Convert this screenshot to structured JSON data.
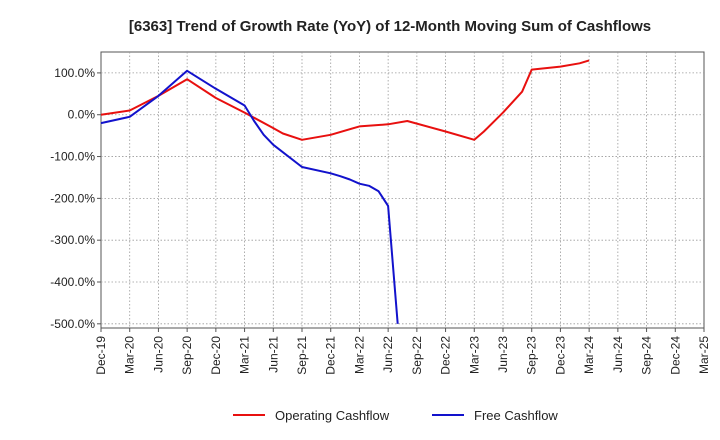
{
  "chart_data": {
    "type": "line",
    "title": "[6363]  Trend of Growth Rate (YoY) of 12-Month Moving Sum of Cashflows",
    "xlabel": "",
    "ylabel": "",
    "ylim": [
      -510,
      150
    ],
    "y_ticks": [
      100,
      0,
      -100,
      -200,
      -300,
      -400,
      -500
    ],
    "y_tick_labels": [
      "100.0%",
      "0.0%",
      "-100.0%",
      "-200.0%",
      "-300.0%",
      "-400.0%",
      "-500.0%"
    ],
    "x_tick_labels": [
      "Dec-19",
      "Mar-20",
      "Jun-20",
      "Sep-20",
      "Dec-20",
      "Mar-21",
      "Jun-21",
      "Sep-21",
      "Dec-21",
      "Mar-22",
      "Jun-22",
      "Sep-22",
      "Dec-22",
      "Mar-23",
      "Jun-23",
      "Sep-23",
      "Dec-23",
      "Mar-24",
      "Jun-24",
      "Sep-24",
      "Dec-24",
      "Mar-25"
    ],
    "grid": true,
    "legend_position": "bottom",
    "series": [
      {
        "name": "Operating Cashflow",
        "color": "#e8100f",
        "x": [
          "Dec-19",
          "Mar-20",
          "Jun-20",
          "Sep-20",
          "Dec-20",
          "Mar-21",
          "Jun-21",
          "Jul-21",
          "Sep-21",
          "Dec-21",
          "Mar-22",
          "Jun-22",
          "Aug-22",
          "Dec-22",
          "Mar-23",
          "Apr-23",
          "Jun-23",
          "Aug-23",
          "Sep-23",
          "Dec-23",
          "Feb-24",
          "Mar-24"
        ],
        "values": [
          0,
          10,
          45,
          85,
          40,
          5,
          -32,
          -45,
          -60,
          -48,
          -28,
          -23,
          -15,
          -40,
          -60,
          -40,
          5,
          55,
          108,
          115,
          123,
          130
        ]
      },
      {
        "name": "Free Cashflow",
        "color": "#1212cc",
        "x": [
          "Dec-19",
          "Mar-20",
          "Jun-20",
          "Sep-20",
          "Dec-20",
          "Mar-21",
          "Apr-21",
          "May-21",
          "Jun-21",
          "Sep-21",
          "Dec-21",
          "Jan-22",
          "Feb-22",
          "Mar-22",
          "Apr-22",
          "May-22",
          "Jun-22",
          "Jul-22"
        ],
        "values": [
          -20,
          -5,
          45,
          105,
          62,
          22,
          -15,
          -48,
          -72,
          -125,
          -140,
          -147,
          -155,
          -165,
          -170,
          -183,
          -218,
          -500
        ]
      }
    ]
  }
}
